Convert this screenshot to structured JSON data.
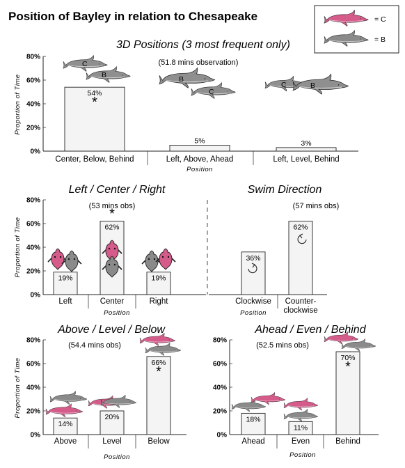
{
  "title": "Position of Bayley in relation to Chesapeake",
  "legend": {
    "c_label": "= C",
    "b_label": "= B",
    "c_color": "#d45b8a",
    "b_color": "#8a8a8a"
  },
  "y_axis_label": "Proportion of Time",
  "x_axis_label": "Position",
  "significance_marker": "*",
  "chart_data": [
    {
      "type": "bar",
      "title": "3D Positions (3 most frequent only)",
      "note": "(51.8 mins observation)",
      "categories": [
        "Center, Below, Behind",
        "Left, Above, Ahead",
        "Left, Level, Behind"
      ],
      "values": [
        54,
        5,
        3
      ],
      "value_labels": [
        "54%",
        "5%",
        "3%"
      ],
      "significant": [
        true,
        false,
        false
      ],
      "yticks": [
        "0%",
        "20%",
        "40%",
        "60%",
        "80%"
      ],
      "ylim": [
        0,
        80
      ],
      "xlabel": "Position",
      "ylabel": "Proportion of Time"
    },
    {
      "type": "bar",
      "title": "Left / Center / Right",
      "note": "(53 mins obs)",
      "categories": [
        "Left",
        "Center",
        "Right"
      ],
      "values": [
        19,
        62,
        19
      ],
      "value_labels": [
        "19%",
        "62%",
        "19%"
      ],
      "significant": [
        false,
        true,
        false
      ],
      "yticks": [
        "0%",
        "20%",
        "40%",
        "60%",
        "80%"
      ],
      "ylim": [
        0,
        80
      ],
      "xlabel": "Position",
      "ylabel": "Proportion of Time"
    },
    {
      "type": "bar",
      "title": "Swim Direction",
      "note": "(57 mins obs)",
      "categories": [
        "Clockwise",
        "Counter-\nclockwise"
      ],
      "category_lines": [
        [
          "Clockwise"
        ],
        [
          "Counter-",
          "clockwise"
        ]
      ],
      "values": [
        36,
        62
      ],
      "value_labels": [
        "36%",
        "62%"
      ],
      "significant": [
        false,
        false
      ],
      "ylim": [
        0,
        80
      ],
      "xlabel": "Position"
    },
    {
      "type": "bar",
      "title": "Above / Level / Below",
      "note": "(54.4 mins obs)",
      "categories": [
        "Above",
        "Level",
        "Below"
      ],
      "values": [
        14,
        20,
        66
      ],
      "value_labels": [
        "14%",
        "20%",
        "66%"
      ],
      "significant": [
        false,
        false,
        true
      ],
      "yticks": [
        "0%",
        "20%",
        "40%",
        "60%",
        "80%"
      ],
      "ylim": [
        0,
        80
      ],
      "xlabel": "Position",
      "ylabel": "Proportion of Time"
    },
    {
      "type": "bar",
      "title": "Ahead / Even / Behind",
      "note": "(52.5 mins obs)",
      "categories": [
        "Ahead",
        "Even",
        "Behind"
      ],
      "values": [
        18,
        11,
        70
      ],
      "value_labels": [
        "18%",
        "11%",
        "70%"
      ],
      "significant": [
        false,
        false,
        true
      ],
      "yticks": [
        "0%",
        "20%",
        "40%",
        "60%",
        "80%"
      ],
      "ylim": [
        0,
        80
      ],
      "xlabel": "Position"
    }
  ],
  "icons": {
    "dolphin_c": "pink-dolphin-icon",
    "dolphin_b": "gray-dolphin-icon",
    "label_c": "C",
    "label_b": "B"
  }
}
